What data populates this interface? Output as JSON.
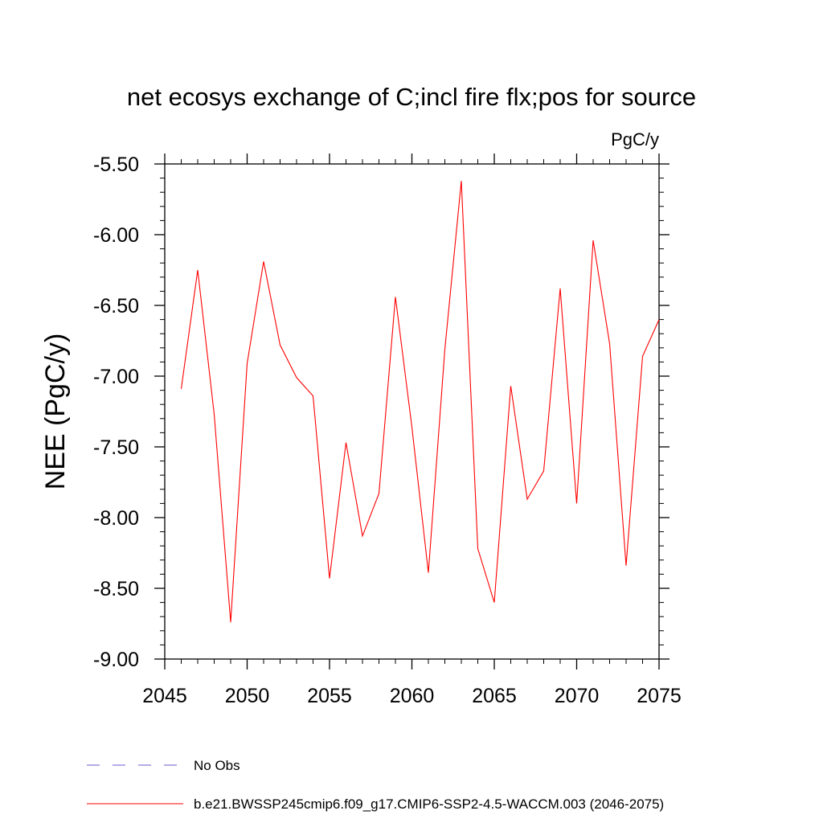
{
  "chart_data": {
    "type": "line",
    "title": "net ecosys exchange of C;incl fire flx;pos for source",
    "units_label": "PgC/y",
    "ylabel": "NEE  (PgC/y)",
    "xlabel": "",
    "xlim": [
      2045,
      2075
    ],
    "ylim": [
      -9.0,
      -5.5
    ],
    "x_ticks": [
      2045,
      2050,
      2055,
      2060,
      2065,
      2070,
      2075
    ],
    "x_tick_labels": [
      "2045",
      "2050",
      "2055",
      "2060",
      "2065",
      "2070",
      "2075"
    ],
    "y_ticks": [
      -5.5,
      -6.0,
      -6.5,
      -7.0,
      -7.5,
      -8.0,
      -8.5,
      -9.0
    ],
    "y_tick_labels": [
      "-5.50",
      "-6.00",
      "-6.50",
      "-7.00",
      "-7.50",
      "-8.00",
      "-8.50",
      "-9.00"
    ],
    "grid": false,
    "legend_position": "bottom",
    "series": [
      {
        "name": "b.e21.BWSSP245cmip6.f09_g17.CMIP6-SSP2-4.5-WACCM.003 (2046-2075)",
        "color": "#ff0000",
        "dash": "solid",
        "x": [
          2046,
          2047,
          2048,
          2049,
          2050,
          2051,
          2052,
          2053,
          2054,
          2055,
          2056,
          2057,
          2058,
          2059,
          2060,
          2061,
          2062,
          2063,
          2064,
          2065,
          2066,
          2067,
          2068,
          2069,
          2070,
          2071,
          2072,
          2073,
          2074,
          2075
        ],
        "values": [
          -7.09,
          -6.25,
          -7.27,
          -8.74,
          -6.91,
          -6.19,
          -6.78,
          -7.01,
          -7.14,
          -8.43,
          -7.47,
          -8.13,
          -7.83,
          -6.44,
          -7.36,
          -8.39,
          -6.81,
          -5.62,
          -8.22,
          -8.6,
          -7.07,
          -7.87,
          -7.67,
          -6.38,
          -7.9,
          -6.04,
          -6.77,
          -8.34,
          -6.86,
          -6.6
        ]
      }
    ],
    "legend": [
      {
        "label": "No Obs",
        "color": "#6a5acd",
        "dash": "dashed"
      },
      {
        "label": "b.e21.BWSSP245cmip6.f09_g17.CMIP6-SSP2-4.5-WACCM.003 (2046-2075)",
        "color": "#ff0000",
        "dash": "solid"
      }
    ]
  }
}
